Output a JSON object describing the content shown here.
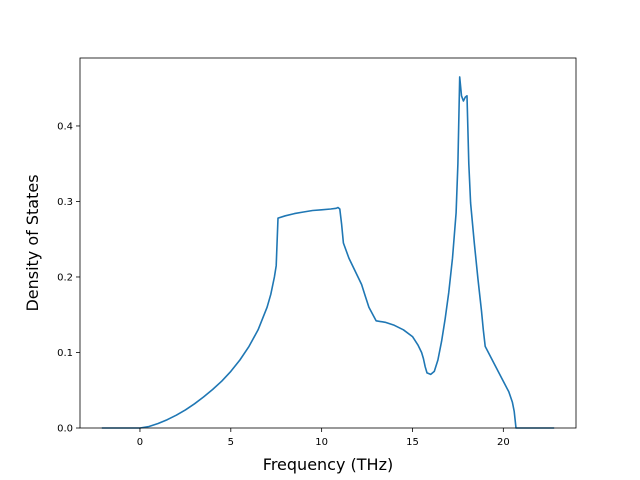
{
  "chart_data": {
    "type": "line",
    "title": "",
    "xlabel": "Frequency (THz)",
    "ylabel": "Density of States",
    "xlim": [
      -3.3,
      24.0
    ],
    "ylim": [
      0.0,
      0.49
    ],
    "xticks": [
      0,
      5,
      10,
      15,
      20
    ],
    "yticks": [
      0.0,
      0.1,
      0.2,
      0.3,
      0.4
    ],
    "ytick_labels": [
      "0.0",
      "0.1",
      "0.2",
      "0.3",
      "0.4"
    ],
    "grid": false,
    "legend": "none",
    "line_color": "#1f77b4",
    "series": [
      {
        "x": [
          -2.1,
          -1.0,
          0.0,
          0.5,
          1.0,
          1.5,
          2.0,
          2.5,
          3.0,
          3.5,
          4.0,
          4.5,
          5.0,
          5.5,
          6.0,
          6.5,
          7.0,
          7.2,
          7.4,
          7.5,
          7.6,
          8.0,
          8.5,
          9.0,
          9.5,
          10.0,
          10.5,
          10.8,
          10.9,
          11.0,
          11.1,
          11.2,
          11.5,
          12.0,
          12.2,
          12.4,
          12.6,
          13.0,
          13.5,
          14.0,
          14.5,
          15.0,
          15.3,
          15.5,
          15.6,
          15.7,
          15.8,
          16.0,
          16.2,
          16.4,
          16.6,
          16.8,
          17.0,
          17.2,
          17.4,
          17.5,
          17.6,
          17.7,
          17.8,
          17.9,
          18.0,
          18.1,
          18.2,
          18.4,
          18.6,
          18.8,
          18.9,
          19.0,
          19.5,
          20.0,
          20.3,
          20.5,
          20.6,
          20.7,
          21.0,
          22.0,
          22.8
        ],
        "y": [
          0.0,
          0.0,
          0.0,
          0.002,
          0.006,
          0.011,
          0.017,
          0.024,
          0.032,
          0.041,
          0.051,
          0.062,
          0.075,
          0.09,
          0.108,
          0.13,
          0.16,
          0.177,
          0.2,
          0.215,
          0.278,
          0.281,
          0.284,
          0.286,
          0.288,
          0.289,
          0.29,
          0.291,
          0.292,
          0.29,
          0.27,
          0.245,
          0.225,
          0.2,
          0.19,
          0.175,
          0.16,
          0.142,
          0.14,
          0.136,
          0.13,
          0.121,
          0.11,
          0.1,
          0.092,
          0.081,
          0.073,
          0.071,
          0.075,
          0.09,
          0.115,
          0.145,
          0.18,
          0.225,
          0.285,
          0.35,
          0.465,
          0.44,
          0.433,
          0.438,
          0.44,
          0.35,
          0.298,
          0.245,
          0.198,
          0.155,
          0.13,
          0.108,
          0.085,
          0.062,
          0.048,
          0.034,
          0.022,
          0.0,
          0.0,
          0.0,
          0.0
        ]
      }
    ]
  }
}
